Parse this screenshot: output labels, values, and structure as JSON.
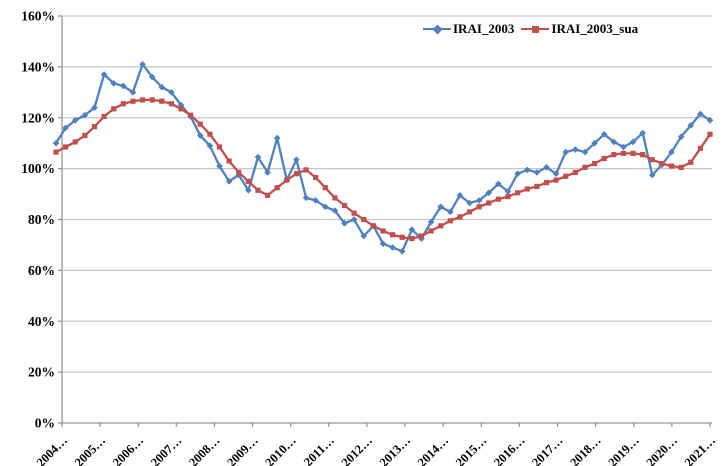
{
  "chart_data": {
    "type": "line",
    "title": "",
    "grid": "horizontal",
    "background_color": "#FFFFFF",
    "gridline_color": "#C6C6C6",
    "axis_color": "#969696",
    "text_color": "#000000",
    "legend": {
      "position": "top-center"
    },
    "y_axis": {
      "min": 0,
      "max": 160,
      "step": 20,
      "unit": "%",
      "tick_labels": [
        "0%",
        "20%",
        "40%",
        "60%",
        "80%",
        "100%",
        "120%",
        "140%",
        "160%"
      ]
    },
    "x_axis": {
      "labels": [
        "2004…",
        "2005…",
        "2006…",
        "2007…",
        "2008…",
        "2009…",
        "2010…",
        "2011…",
        "2012…",
        "2013…",
        "2014…",
        "2015…",
        "2016…",
        "2017…",
        "2018…",
        "2019…",
        "2020…",
        "2021…"
      ],
      "label_rotation_deg": -45
    },
    "series": [
      {
        "name": "IRAI_2003",
        "color": "#4F81BD",
        "marker": "diamond",
        "values": [
          110,
          116,
          119,
          121,
          124,
          137,
          133.5,
          132.5,
          130,
          141,
          136,
          132,
          130,
          125,
          120.5,
          113,
          109,
          101,
          95,
          97.5,
          91.5,
          104.5,
          98.5,
          112,
          95.5,
          103.5,
          88.5,
          87.5,
          85,
          83.5,
          78.5,
          80,
          73.5,
          77.5,
          70.5,
          69,
          67.5,
          76,
          72.5,
          79,
          85,
          83,
          89.5,
          86.5,
          87.5,
          90.5,
          94,
          91,
          98,
          99.5,
          98.5,
          100.5,
          98,
          106.5,
          107.5,
          106.5,
          110,
          113.5,
          110.5,
          108.5,
          110.5,
          114,
          97.5,
          101.5,
          106.5,
          112.5,
          117,
          121.5,
          119
        ]
      },
      {
        "name": "IRAI_2003_sua",
        "color": "#C0504D",
        "marker": "square",
        "values": [
          106.5,
          108.5,
          110.5,
          113,
          116.5,
          120.5,
          123.5,
          125.5,
          126.5,
          127,
          127,
          126.5,
          125.5,
          123.5,
          121,
          117.5,
          113.5,
          108.5,
          103,
          98.5,
          95,
          91.5,
          89.5,
          92.5,
          95.5,
          98,
          99.5,
          96.5,
          92.5,
          88.5,
          85.5,
          82.5,
          80,
          77.5,
          75.5,
          74,
          73,
          72.5,
          73.5,
          75.5,
          77.5,
          79.5,
          81,
          83,
          85,
          86.5,
          88,
          89,
          90.5,
          92,
          93,
          94.5,
          95.5,
          97,
          98.5,
          100.5,
          102,
          104,
          105.5,
          106,
          106,
          105.5,
          103.5,
          102,
          101,
          100.5,
          102.5,
          108,
          113.5
        ]
      }
    ]
  }
}
